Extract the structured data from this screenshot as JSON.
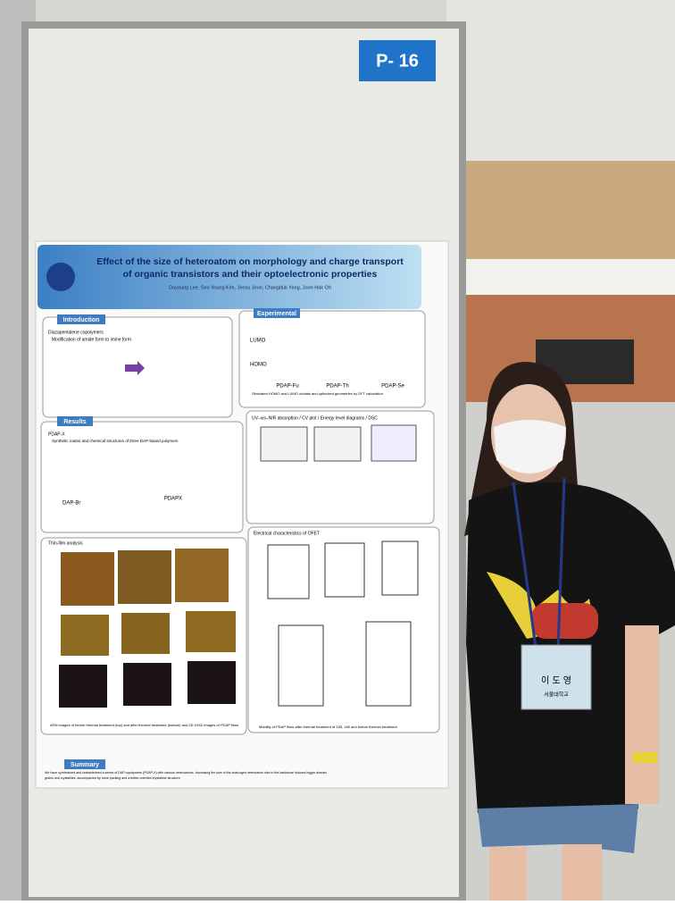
{
  "board": {
    "tag": "P- 16"
  },
  "poster": {
    "title": [
      "Effect of the size of heteroatom on morphology and charge transport",
      "of organic transistors and their optoelectronic properties"
    ],
    "authors": "Doyoung Lee, Seo Young Kim, Jeesu Jeon, Changduk Yang, Joon Hak Oh",
    "sections": {
      "introduction": {
        "heading": "Introduction",
        "lines": [
          "Diazapentalene copolymers",
          "Modification of amide form to imine form"
        ]
      },
      "experimental": {
        "heading": "Experimental",
        "levels": [
          "LUMO",
          "HOMO"
        ],
        "polymers": [
          "PDAP-Fu",
          "PDAP-Th",
          "PDAP-Se"
        ],
        "caption": "Simulated HOMO and LUMO orbitals and optimized geometries by DFT calculation"
      },
      "results": {
        "heading": "Results",
        "lines": [
          "PDAP-X",
          "Synthetic routes and chemical structures of three DAP-based polymers"
        ],
        "labels": [
          "DAP-Br",
          "PDAPX"
        ],
        "optical": "UV–vis–NIR absorption / CV plot / Energy level diagrams / DSC",
        "film": "Thin-film analysis",
        "ofet": "Electrical characteristics of OFET",
        "film_caption": "AFM images of before thermal treatment (top) and after thermal treatment (bottom) and 2D GIXD images of PDAP films",
        "ofet_caption": "Mobility of PDAP films after thermal treatment of 150, 180 and before thermal treatment."
      },
      "summary": {
        "heading": "Summary",
        "lines": [
          "We have synthesized and characterized a series of DAP copolymers (PDAP-X) with various heteroatoms. Increasing the size of the chalcogen heteroatom size in the backbone induces bigger domain",
          "grains and crystallites, accompanied by more packing and a better-oriented crystalline structure."
        ]
      }
    }
  },
  "badge": {
    "name": "이 도 영",
    "affiliation": "서울대학교"
  }
}
